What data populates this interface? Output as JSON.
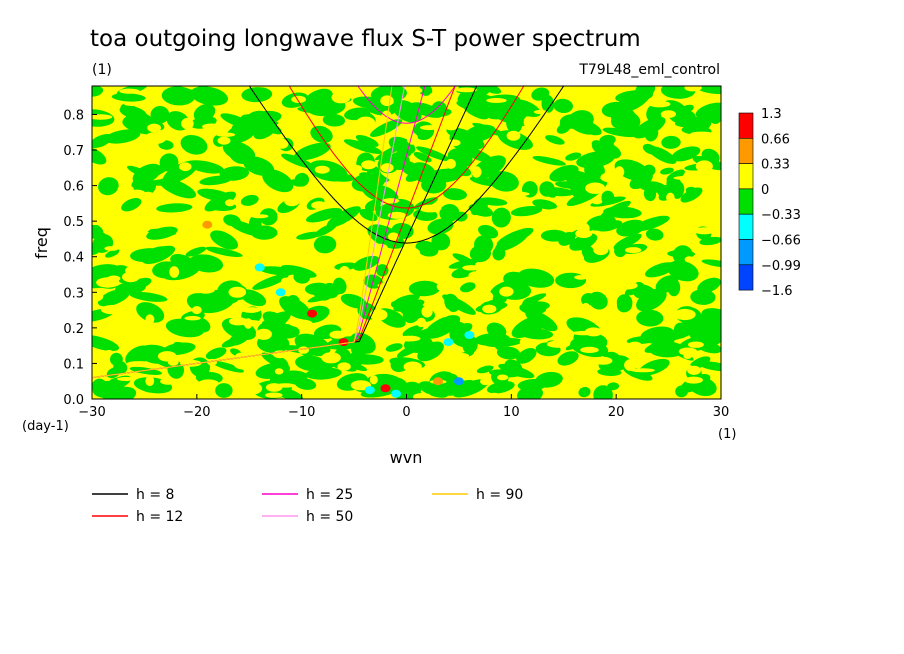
{
  "chart_data": {
    "type": "heatmap",
    "title": "toa outgoing longwave flux S-T power spectrum",
    "subtitle_left": "(1)",
    "subtitle_right": "T79L48_eml_control",
    "xlabel": "wvn",
    "ylabel": "freq",
    "x_unit": "(1)",
    "y_unit": "(day-1)",
    "xlim": [
      -30,
      30
    ],
    "ylim": [
      0,
      0.88
    ],
    "xticks": [
      -30,
      -20,
      -10,
      0,
      10,
      20,
      30
    ],
    "yticks": [
      0.0,
      0.1,
      0.2,
      0.3,
      0.4,
      0.5,
      0.6,
      0.7,
      0.8
    ],
    "colorbar": {
      "levels": [
        "1.3",
        "0.66",
        "0.33",
        "0",
        "-0.33",
        "-0.66",
        "-0.99",
        "-1.6"
      ],
      "colors": [
        "#ff0000",
        "#ff9900",
        "#ffff00",
        "#00e000",
        "#00ffff",
        "#0099ff",
        "#0044ff"
      ]
    },
    "field_description_colors": {
      "background": "#ffff00",
      "dominant": "#00e000"
    },
    "hotspots": [
      {
        "x": -14.0,
        "y": 0.37,
        "class": "-0.33"
      },
      {
        "x": -11.5,
        "y": 0.33,
        "class": "0.33"
      },
      {
        "x": -12.0,
        "y": 0.3,
        "class": "-0.33"
      },
      {
        "x": -9.0,
        "y": 0.24,
        "class": "1.3"
      },
      {
        "x": -6.0,
        "y": 0.16,
        "class": "1.3"
      },
      {
        "x": -2.0,
        "y": 0.03,
        "class": "1.3"
      },
      {
        "x": -3.5,
        "y": 0.025,
        "class": "-0.33"
      },
      {
        "x": -1.0,
        "y": 0.015,
        "class": "-0.33"
      },
      {
        "x": 3.0,
        "y": 0.05,
        "class": "0.66"
      },
      {
        "x": 5.0,
        "y": 0.05,
        "class": "-0.66"
      },
      {
        "x": 4.0,
        "y": 0.16,
        "class": "-0.33"
      },
      {
        "x": 6.0,
        "y": 0.18,
        "class": "-0.33"
      },
      {
        "x": 7.5,
        "y": 0.05,
        "class": "0.33"
      },
      {
        "x": -20.0,
        "y": 0.25,
        "class": "0.33"
      },
      {
        "x": -19.0,
        "y": 0.49,
        "class": "0.66"
      }
    ],
    "dispersion_curves": [
      {
        "name": "h =  8",
        "color": "#000000",
        "equivalent_depth": 8
      },
      {
        "name": "h = 12",
        "color": "#ff0000",
        "equivalent_depth": 12
      },
      {
        "name": "h = 25",
        "color": "#ff00cc",
        "equivalent_depth": 25
      },
      {
        "name": "h = 50",
        "color": "#ff99ee",
        "equivalent_depth": 50
      },
      {
        "name": "h = 90",
        "color": "#ffcc00",
        "equivalent_depth": 90
      }
    ]
  }
}
